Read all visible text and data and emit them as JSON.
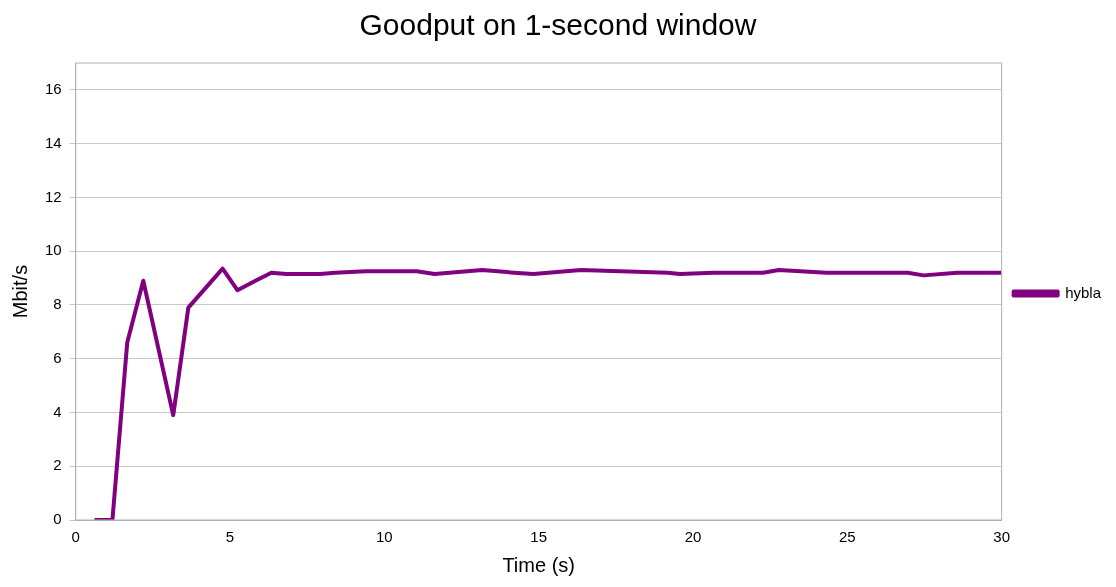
{
  "chart_data": {
    "type": "line",
    "title": "Goodput on 1-second window",
    "xlabel": "Time (s)",
    "ylabel": "Mbit/s",
    "xlim": [
      0,
      30
    ],
    "xticks": [
      0,
      5,
      10,
      15,
      20,
      25,
      30
    ],
    "ylim": [
      0,
      17
    ],
    "yticks": [
      0,
      2,
      4,
      6,
      8,
      10,
      12,
      14,
      16
    ],
    "grid": "y",
    "legend": "right",
    "marker": "none",
    "line_style": "solid",
    "series": [
      {
        "name": "hybla",
        "color": "#800080",
        "x": [
          0.61,
          1.19,
          1.67,
          2.19,
          3.16,
          3.65,
          4.76,
          5.24,
          6.34,
          6.82,
          7.91,
          8.41,
          9.39,
          11.05,
          11.63,
          13.17,
          14.2,
          14.83,
          16.37,
          19.18,
          19.58,
          20.67,
          22.27,
          22.78,
          24.33,
          25.24,
          25.93,
          26.96,
          27.47,
          28.56,
          30
        ],
        "values": [
          0,
          0,
          6.6,
          8.9,
          3.9,
          7.9,
          9.35,
          8.55,
          9.2,
          9.15,
          9.15,
          9.2,
          9.25,
          9.25,
          9.15,
          9.3,
          9.2,
          9.15,
          9.3,
          9.2,
          9.15,
          9.2,
          9.2,
          9.3,
          9.2,
          9.2,
          9.2,
          9.2,
          9.1,
          9.2,
          9.2
        ]
      }
    ]
  }
}
